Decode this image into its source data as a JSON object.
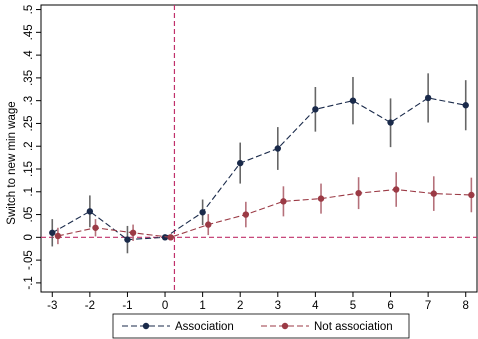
{
  "chart_data": {
    "type": "line",
    "title": "",
    "xlabel": "",
    "ylabel": "Switch to new min wage",
    "x_ticks": [
      -3,
      -2,
      -1,
      0,
      1,
      2,
      3,
      4,
      5,
      6,
      7,
      8
    ],
    "x_tick_labels": [
      "-3",
      "-2",
      "-1",
      "0",
      "1",
      "2",
      "3",
      "4",
      "5",
      "6",
      "7",
      "8"
    ],
    "y_ticks": [
      -0.1,
      -0.05,
      0,
      0.05,
      0.1,
      0.15,
      0.2,
      0.25,
      0.3,
      0.35,
      0.4,
      0.45,
      0.5
    ],
    "y_tick_labels": [
      "-.1",
      "-.05",
      "0",
      ".05",
      ".1",
      ".15",
      ".2",
      ".25",
      ".3",
      ".35",
      ".4",
      ".45",
      ".5"
    ],
    "xlim": [
      -3.3,
      8.3
    ],
    "ylim": [
      -0.12,
      0.51
    ],
    "grid": false,
    "vertical_reference_line_x": 0.25,
    "horizontal_reference_line_y": 0,
    "legend_placement": "bottom",
    "series": [
      {
        "name": "Association",
        "color": "#1a2a4a",
        "line_style": "dashed",
        "x": [
          -3,
          -2,
          -1,
          0,
          1,
          2,
          3,
          4,
          5,
          6,
          7,
          8
        ],
        "y": [
          0.01,
          0.057,
          -0.005,
          0.0,
          0.055,
          0.163,
          0.195,
          0.281,
          0.3,
          0.252,
          0.306,
          0.29
        ],
        "ci_low": [
          -0.02,
          0.022,
          -0.035,
          0.0,
          0.027,
          0.118,
          0.148,
          0.232,
          0.248,
          0.198,
          0.252,
          0.235
        ],
        "ci_high": [
          0.04,
          0.092,
          0.025,
          0.0,
          0.083,
          0.208,
          0.242,
          0.33,
          0.352,
          0.305,
          0.36,
          0.345
        ]
      },
      {
        "name": "Not association",
        "color": "#9b3a45",
        "line_style": "solid",
        "x": [
          -2.85,
          -1.85,
          -0.85,
          0.15,
          1.15,
          2.15,
          3.15,
          4.15,
          5.15,
          6.15,
          7.15,
          8.15
        ],
        "y": [
          0.003,
          0.021,
          0.01,
          0.0,
          0.028,
          0.05,
          0.079,
          0.085,
          0.097,
          0.105,
          0.096,
          0.093
        ],
        "ci_low": [
          -0.015,
          0.002,
          -0.008,
          0.0,
          0.005,
          0.022,
          0.046,
          0.052,
          0.062,
          0.067,
          0.058,
          0.055
        ],
        "ci_high": [
          0.021,
          0.04,
          0.028,
          0.0,
          0.051,
          0.078,
          0.112,
          0.118,
          0.132,
          0.143,
          0.134,
          0.131
        ]
      }
    ]
  }
}
